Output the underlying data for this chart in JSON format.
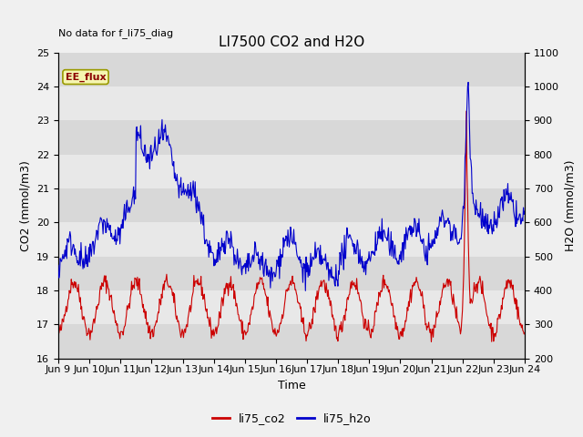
{
  "title": "LI7500 CO2 and H2O",
  "no_data_text": "No data for f_li75_diag",
  "ee_flux_label": "EE_flux",
  "xlabel": "Time",
  "ylabel_left": "CO2 (mmol/m3)",
  "ylabel_right": "H2O (mmol/m3)",
  "ylim_left": [
    16.0,
    25.0
  ],
  "ylim_right": [
    200,
    1100
  ],
  "yticks_left": [
    16.0,
    17.0,
    18.0,
    19.0,
    20.0,
    21.0,
    22.0,
    23.0,
    24.0,
    25.0
  ],
  "yticks_right": [
    200,
    300,
    400,
    500,
    600,
    700,
    800,
    900,
    1000,
    1100
  ],
  "xtick_labels": [
    "Jun 9",
    "Jun 10",
    "Jun 11",
    "Jun 12",
    "Jun 13",
    "Jun 14",
    "Jun 15",
    "Jun 16",
    "Jun 17",
    "Jun 18",
    "Jun 19",
    "Jun 20",
    "Jun 21",
    "Jun 22",
    "Jun 23",
    "Jun 24"
  ],
  "color_co2": "#cc0000",
  "color_h2o": "#0000cc",
  "legend_co2": "li75_co2",
  "legend_h2o": "li75_h2o",
  "background_color": "#f0f0f0",
  "plot_bg_color": "#e8e8e8",
  "band_light": "#e8e8e8",
  "band_dark": "#d8d8d8",
  "ee_flux_bg": "#f5f5b0",
  "ee_flux_border": "#999900",
  "title_fontsize": 11,
  "axis_label_fontsize": 9,
  "tick_fontsize": 8,
  "legend_fontsize": 9,
  "no_data_fontsize": 8
}
